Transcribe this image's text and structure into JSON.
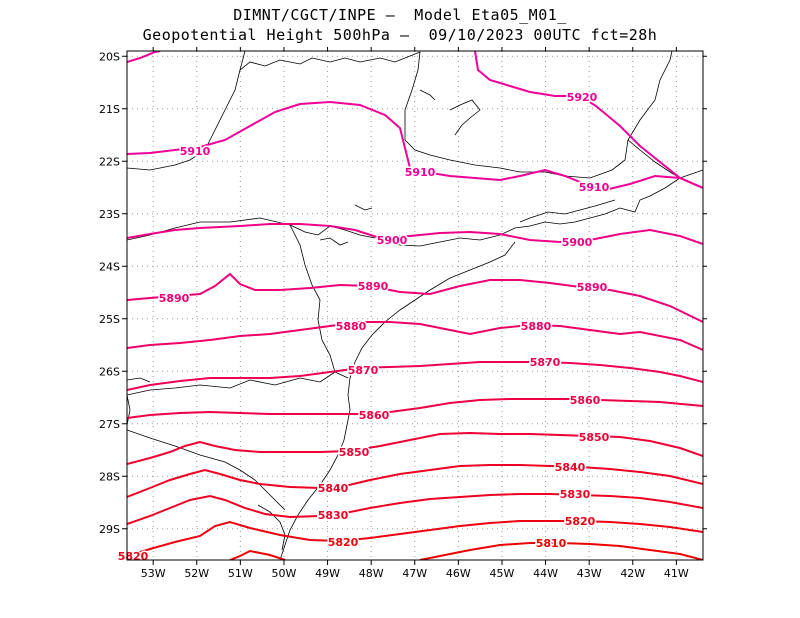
{
  "title_line1": "DIMNT/CGCT/INPE –  Model Eta05_M01_",
  "title_line2": "Geopotential Height 500hPa –  09/10/2023 00UTC fct=28h",
  "map": {
    "lon_range": [
      -53.6,
      -40.5
    ],
    "lat_range": [
      -29.4,
      -19.9
    ],
    "lon_ticks": [
      "53W",
      "52W",
      "51W",
      "50W",
      "49W",
      "48W",
      "47W",
      "46W",
      "45W",
      "44W",
      "43W",
      "42W",
      "41W"
    ],
    "lat_ticks": [
      "20S",
      "21S",
      "22S",
      "23S",
      "24S",
      "25S",
      "26S",
      "27S",
      "28S",
      "29S"
    ]
  },
  "contours": [
    {
      "level": 5920,
      "label": "5920",
      "color": "#ee0099"
    },
    {
      "level": 5910,
      "label": "5910",
      "color": "#ee0099"
    },
    {
      "level": 5900,
      "label": "5900",
      "color": "#ee0088"
    },
    {
      "level": 5890,
      "label": "5890",
      "color": "#ee0077"
    },
    {
      "level": 5880,
      "label": "5880",
      "color": "#ee0066"
    },
    {
      "level": 5870,
      "label": "5870",
      "color": "#ee0055"
    },
    {
      "level": 5860,
      "label": "5860",
      "color": "#ee0044"
    },
    {
      "level": 5850,
      "label": "5850",
      "color": "#ee0033"
    },
    {
      "level": 5840,
      "label": "5840",
      "color": "#ee0022"
    },
    {
      "level": 5830,
      "label": "5830",
      "color": "#ee0022"
    },
    {
      "level": 5820,
      "label": "5820",
      "color": "#ee0011"
    },
    {
      "level": 5810,
      "label": "5810",
      "color": "#ee0000"
    }
  ]
}
